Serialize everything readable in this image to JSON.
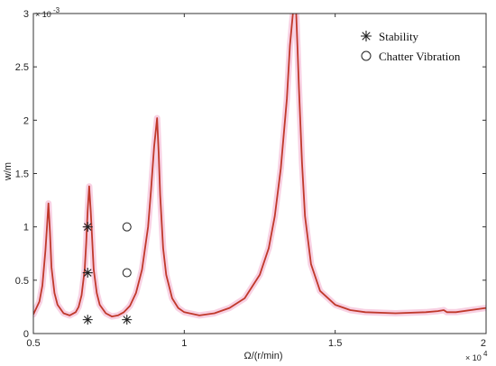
{
  "chart_data": {
    "type": "line",
    "title": "",
    "xlabel": "Ω/(r/min)",
    "ylabel": "w/m",
    "xlim": [
      0.5,
      2.0
    ],
    "ylim": [
      0,
      3.0
    ],
    "x_multiplier_label": "× 10",
    "x_multiplier_exp": "4",
    "y_multiplier_label": "× 10",
    "y_multiplier_exp": "-3",
    "x_ticks": [
      0.5,
      1,
      1.5,
      2
    ],
    "x_tick_labels": [
      "0.5",
      "1",
      "1.5",
      "2"
    ],
    "y_ticks": [
      0,
      0.5,
      1,
      1.5,
      2,
      2.5,
      3
    ],
    "y_tick_labels": [
      "0",
      "0.5",
      "1",
      "1.5",
      "2",
      "2.5",
      "3"
    ],
    "grid": false,
    "legend_position": "top-right",
    "series": [
      {
        "color": "#c0392b",
        "glow": "#f6c6dc",
        "x": [
          0.5,
          0.52,
          0.53,
          0.54,
          0.545,
          0.55,
          0.555,
          0.56,
          0.57,
          0.58,
          0.6,
          0.62,
          0.64,
          0.65,
          0.66,
          0.67,
          0.675,
          0.68,
          0.685,
          0.69,
          0.7,
          0.71,
          0.72,
          0.74,
          0.76,
          0.78,
          0.8,
          0.82,
          0.84,
          0.86,
          0.88,
          0.89,
          0.9,
          0.91,
          0.915,
          0.92,
          0.93,
          0.94,
          0.96,
          0.98,
          1.0,
          1.05,
          1.1,
          1.15,
          1.2,
          1.25,
          1.28,
          1.3,
          1.32,
          1.34,
          1.35,
          1.36,
          1.365,
          1.37,
          1.375,
          1.38,
          1.39,
          1.4,
          1.42,
          1.45,
          1.5,
          1.55,
          1.6,
          1.7,
          1.8,
          1.84,
          1.86,
          1.87,
          1.9,
          2.0
        ],
        "y": [
          0.18,
          0.3,
          0.45,
          0.78,
          1.0,
          1.22,
          0.95,
          0.62,
          0.38,
          0.27,
          0.19,
          0.17,
          0.2,
          0.25,
          0.36,
          0.6,
          0.85,
          1.15,
          1.38,
          1.15,
          0.6,
          0.38,
          0.27,
          0.19,
          0.16,
          0.17,
          0.2,
          0.26,
          0.38,
          0.6,
          1.0,
          1.35,
          1.75,
          2.02,
          1.7,
          1.3,
          0.8,
          0.55,
          0.33,
          0.24,
          0.2,
          0.17,
          0.19,
          0.24,
          0.33,
          0.55,
          0.8,
          1.1,
          1.55,
          2.2,
          2.7,
          3.0,
          3.05,
          3.05,
          2.7,
          2.3,
          1.6,
          1.1,
          0.65,
          0.4,
          0.27,
          0.22,
          0.2,
          0.19,
          0.2,
          0.21,
          0.22,
          0.2,
          0.2,
          0.24
        ]
      }
    ],
    "markers": {
      "stability": {
        "label": "Stability",
        "symbol": "✳",
        "points": [
          {
            "x": 0.68,
            "y": 1.0
          },
          {
            "x": 0.68,
            "y": 0.57
          },
          {
            "x": 0.68,
            "y": 0.13
          },
          {
            "x": 0.81,
            "y": 0.13
          }
        ]
      },
      "chatter": {
        "label": "Chatter Vibration",
        "symbol": "○",
        "points": [
          {
            "x": 0.81,
            "y": 1.0
          },
          {
            "x": 0.81,
            "y": 0.57
          }
        ]
      }
    }
  }
}
